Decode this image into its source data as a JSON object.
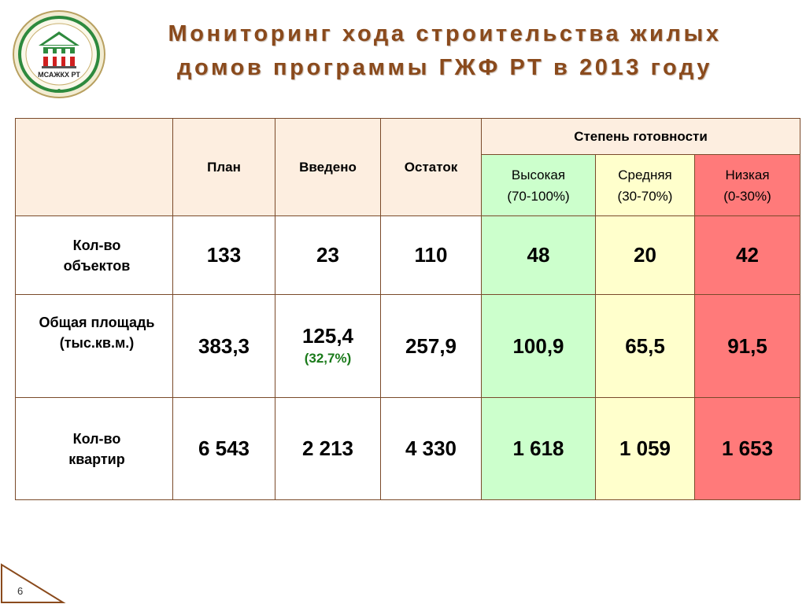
{
  "title": {
    "line1": "Мониторинг хода строительства жилых",
    "line2": "домов программы ГЖФ РТ в 2013 году"
  },
  "logo": {
    "text": "МСАЖКХ РТ"
  },
  "table": {
    "headers": {
      "plan": "План",
      "vvedeno": "Введено",
      "ostatok": "Остаток",
      "readiness": "Степень готовности",
      "high_line1": "Высокая",
      "high_line2": "(70-100%)",
      "mid_line1": "Средняя",
      "mid_line2": "(30-70%)",
      "low_line1": "Низкая",
      "low_line2": "(0-30%)"
    },
    "rows": [
      {
        "label_line1": "Кол-во",
        "label_line2": "объектов",
        "plan": "133",
        "vvedeno": "23",
        "ostatok": "110",
        "high": "48",
        "mid": "20",
        "low": "42"
      },
      {
        "label_line1": "Общая площадь",
        "label_line2": "(тыс.кв.м.)",
        "plan": "383,3",
        "vvedeno": "125,4",
        "vvedeno_pct": "(32,7%)",
        "ostatok": "257,9",
        "high": "100,9",
        "mid": "65,5",
        "low": "91,5"
      },
      {
        "label_line1": "Кол-во",
        "label_line2": "квартир",
        "plan": "6 543",
        "vvedeno": "2 213",
        "ostatok": "4 330",
        "high": "1 618",
        "mid": "1 059",
        "low": "1 653"
      }
    ]
  },
  "slide_number": "6",
  "colors": {
    "title": "#8a4a1c",
    "high": "#ccffcc",
    "mid": "#ffffcc",
    "low": "#ff7a7a",
    "header_bg": "#fdeee0",
    "border": "#7a4a2a"
  }
}
